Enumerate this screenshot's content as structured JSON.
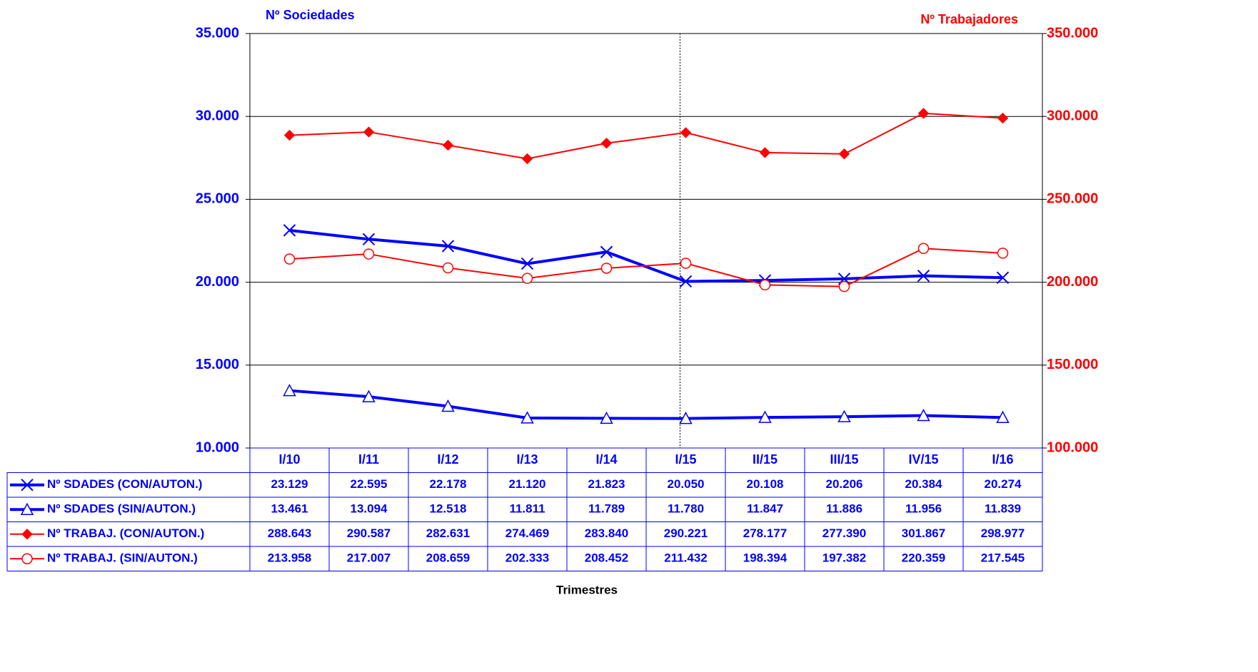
{
  "chart_data": {
    "type": "line",
    "y_label": "Nº Sociedades",
    "y2_label": "Nº Trabajadores",
    "x_label": "Trimestres",
    "categories": [
      "I/10",
      "I/11",
      "I/12",
      "I/13",
      "I/14",
      "I/15",
      "II/15",
      "III/15",
      "IV/15",
      "I/16"
    ],
    "ylim": [
      10000,
      35000
    ],
    "yticks": [
      {
        "value": 10000,
        "label": "10.000"
      },
      {
        "value": 15000,
        "label": "15.000"
      },
      {
        "value": 20000,
        "label": "20.000"
      },
      {
        "value": 25000,
        "label": "25.000"
      },
      {
        "value": 30000,
        "label": "30.000"
      },
      {
        "value": 35000,
        "label": "35.000"
      }
    ],
    "y2lim": [
      100000,
      350000
    ],
    "y2ticks": [
      {
        "value": 100000,
        "label": "100.000"
      },
      {
        "value": 150000,
        "label": "150.000"
      },
      {
        "value": 200000,
        "label": "200.000"
      },
      {
        "value": 250000,
        "label": "250.000"
      },
      {
        "value": 300000,
        "label": "300.000"
      },
      {
        "value": 350000,
        "label": "350.000"
      }
    ],
    "grid": true,
    "series": [
      {
        "name": "Nº SDADES (CON/AUTON.)",
        "color": "#0000ff",
        "marker": "x",
        "axis": "y",
        "values": [
          23129,
          22595,
          22178,
          21120,
          21823,
          20050,
          20108,
          20206,
          20384,
          20274
        ],
        "value_labels": [
          "23.129",
          "22.595",
          "22.178",
          "21.120",
          "21.823",
          "20.050",
          "20.108",
          "20.206",
          "20.384",
          "20.274"
        ]
      },
      {
        "name": "Nº SDADES (SIN/AUTON.)",
        "color": "#0000ff",
        "marker": "triangle",
        "axis": "y",
        "values": [
          13461,
          13094,
          12518,
          11811,
          11789,
          11780,
          11847,
          11886,
          11956,
          11839
        ],
        "value_labels": [
          "13.461",
          "13.094",
          "12.518",
          "11.811",
          "11.789",
          "11.780",
          "11.847",
          "11.886",
          "11.956",
          "11.839"
        ]
      },
      {
        "name": "Nº TRABAJ. (CON/AUTON.)",
        "color": "#ff0000",
        "marker": "diamond",
        "axis": "y2",
        "values": [
          288643,
          290587,
          282631,
          274469,
          283840,
          290221,
          278177,
          277390,
          301867,
          298977
        ],
        "value_labels": [
          "288.643",
          "290.587",
          "282.631",
          "274.469",
          "283.840",
          "290.221",
          "278.177",
          "277.390",
          "301.867",
          "298.977"
        ]
      },
      {
        "name": "Nº TRABAJ. (SIN/AUTON.)",
        "color": "#ff0000",
        "marker": "circle",
        "axis": "y2",
        "values": [
          213958,
          217007,
          208659,
          202333,
          208452,
          211432,
          198394,
          197382,
          220359,
          217545
        ],
        "value_labels": [
          "213.958",
          "217.007",
          "208.659",
          "202.333",
          "208.452",
          "211.432",
          "198.394",
          "197.382",
          "220.359",
          "217.545"
        ]
      }
    ]
  }
}
